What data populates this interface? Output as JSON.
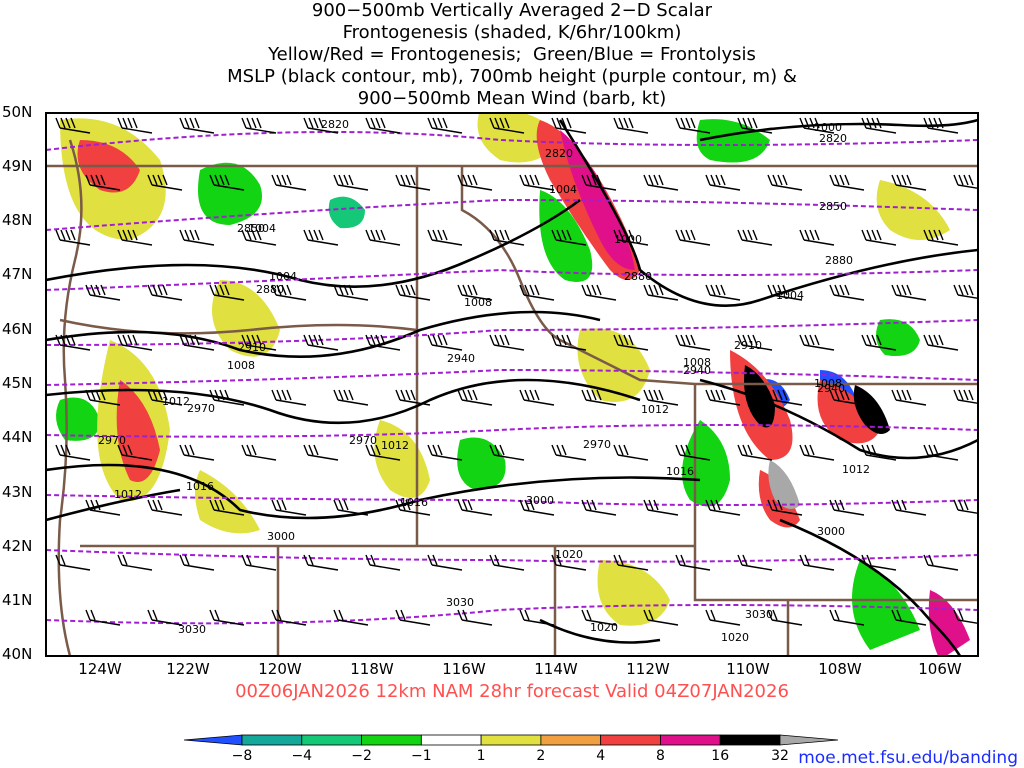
{
  "title_lines": [
    "900−500mb Vertically Averaged 2−D Scalar",
    "Frontogenesis (shaded, K/6hr/100km)",
    "Yellow/Red = Frontogenesis;  Green/Blue = Frontolysis",
    "MSLP (black contour, mb), 700mb height (purple contour, m) &",
    "900−500mb Mean Wind (barb, kt)"
  ],
  "valid_line": "00Z06JAN2026 12km NAM 28hr forecast Valid 04Z07JAN2026",
  "credit": "moe.met.fsu.edu/banding",
  "colors": {
    "frontolysis_blue": "#2050ff",
    "frontolysis_green": "#10cc10",
    "frontogenesis_yellow": "#e0e040",
    "frontogenesis_red": "#f04040",
    "frontogenesis_magenta": "#e0108a",
    "mslp_contour": "#000000",
    "height_contour": "#a020d0",
    "borders": "#7a5a48"
  },
  "map": {
    "lat_labels": [
      "50N",
      "49N",
      "48N",
      "47N",
      "46N",
      "45N",
      "44N",
      "43N",
      "42N",
      "41N",
      "40N"
    ],
    "lon_labels": [
      "124W",
      "122W",
      "120W",
      "118W",
      "116W",
      "114W",
      "112W",
      "110W",
      "108W",
      "106W"
    ],
    "mslp_labels": [
      "1000",
      "1004",
      "1000",
      "1004",
      "1008",
      "1004",
      "1008",
      "1012",
      "1012",
      "1016",
      "1016",
      "1012",
      "1008",
      "1016",
      "1012",
      "1020",
      "1020",
      "1020",
      "1004",
      "1008",
      "1012"
    ],
    "height_labels": [
      "2820",
      "2820",
      "2820",
      "2850",
      "2850",
      "2880",
      "2880",
      "2880",
      "2910",
      "2910",
      "2940",
      "2940",
      "2940",
      "2970",
      "2970",
      "2970",
      "2970",
      "3000",
      "3000",
      "3000",
      "3030",
      "3030",
      "3030"
    ]
  },
  "legend": {
    "tick_labels": [
      "−8",
      "−4",
      "−2",
      "−1",
      "1",
      "2",
      "4",
      "8",
      "16",
      "32"
    ],
    "bins": [
      {
        "color": "#2050ff"
      },
      {
        "color": "#13a89a"
      },
      {
        "color": "#14c878"
      },
      {
        "color": "#12d412"
      },
      {
        "color": "#ffffff"
      },
      {
        "color": "#e0e040"
      },
      {
        "color": "#f0a040"
      },
      {
        "color": "#f04040"
      },
      {
        "color": "#e0108a"
      },
      {
        "color": "#000000"
      },
      {
        "color": "#a8a8a8"
      }
    ]
  }
}
